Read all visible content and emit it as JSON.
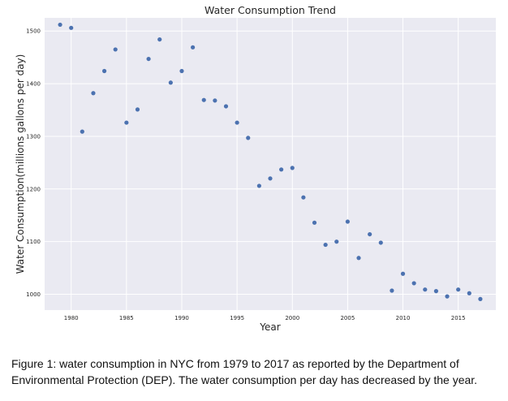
{
  "chart_data": {
    "type": "scatter",
    "title": "Water Consumption Trend",
    "xlabel": "Year",
    "ylabel": "Water Consumption(millions gallons per day)",
    "xlim": [
      1977.6,
      2018.4
    ],
    "ylim": [
      970,
      1525
    ],
    "xticks": [
      1980,
      1985,
      1990,
      1995,
      2000,
      2005,
      2010,
      2015
    ],
    "yticks": [
      1000,
      1100,
      1200,
      1300,
      1400,
      1500
    ],
    "grid": true,
    "colors": {
      "background": "#EAEAF2",
      "grid": "#FFFFFF",
      "marker": "#4C72B0",
      "text": "#262626"
    },
    "series": [
      {
        "x": [
          1979,
          1980,
          1981,
          1982,
          1983,
          1984,
          1985,
          1986,
          1987,
          1988,
          1989,
          1990,
          1991,
          1992,
          1993,
          1994,
          1995,
          1996,
          1997,
          1998,
          1999,
          2000,
          2001,
          2002,
          2003,
          2004,
          2005,
          2006,
          2007,
          2008,
          2009,
          2010,
          2011,
          2012,
          2013,
          2014,
          2015,
          2016,
          2017
        ],
        "y": [
          1512,
          1506,
          1309,
          1382,
          1424,
          1465,
          1326,
          1351,
          1447,
          1484,
          1402,
          1424,
          1469,
          1369,
          1368,
          1357,
          1326,
          1297,
          1206,
          1220,
          1237,
          1240,
          1184,
          1136,
          1094,
          1100,
          1138,
          1069,
          1114,
          1098,
          1007,
          1039,
          1021,
          1009,
          1006,
          996,
          1009,
          1002,
          991
        ]
      }
    ]
  },
  "caption": {
    "text": "Figure 1: water consumption in NYC from 1979 to 2017 as reported by the Department of Environmental Protection (DEP). The water consumption per day has decreased by the year."
  }
}
